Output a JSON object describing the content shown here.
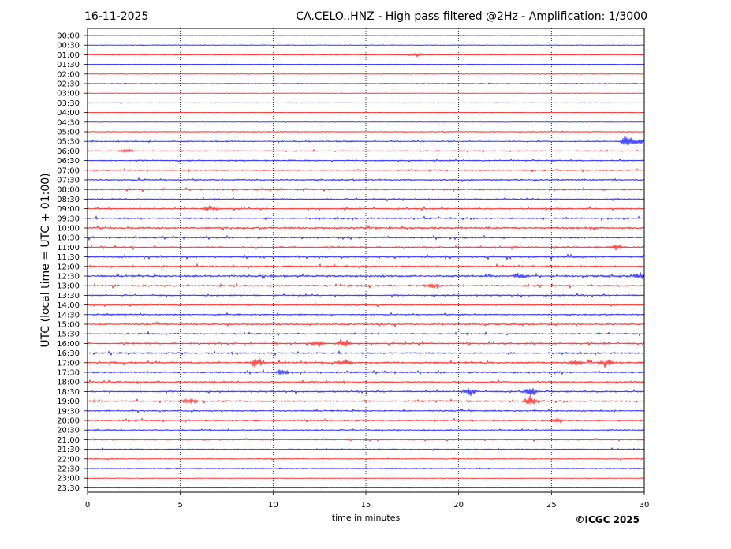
{
  "header": {
    "date": "16-11-2025",
    "title": "CA.CELO..HNZ - High pass filtered @2Hz - Amplification: 1/3000"
  },
  "footer": {
    "copyright": "©ICGC 2025"
  },
  "chart_data": {
    "type": "line",
    "title": "CA.CELO..HNZ - High pass filtered @2Hz - Amplification: 1/3000",
    "xlabel": "time in minutes",
    "ylabel": "UTC (local time = UTC + 01:00)",
    "xlim": [
      0,
      30
    ],
    "xticks": [
      0,
      5,
      10,
      15,
      20,
      25,
      30
    ],
    "vertical_gridlines": [
      5,
      10,
      15,
      20,
      25
    ],
    "grid_style": "dotted",
    "row_labels": [
      "00:00",
      "00:30",
      "01:00",
      "01:30",
      "02:00",
      "02:30",
      "03:00",
      "03:30",
      "04:00",
      "04:30",
      "05:00",
      "05:30",
      "06:00",
      "06:30",
      "07:00",
      "07:30",
      "08:00",
      "08:30",
      "09:00",
      "09:30",
      "10:00",
      "10:30",
      "11:00",
      "11:30",
      "12:00",
      "12:30",
      "13:00",
      "13:30",
      "14:00",
      "14:30",
      "15:00",
      "15:30",
      "16:00",
      "16:30",
      "17:00",
      "17:30",
      "18:00",
      "18:30",
      "19:00",
      "19:30",
      "20:00",
      "20:30",
      "21:00",
      "21:30",
      "22:00",
      "22:30",
      "23:00",
      "23:30"
    ],
    "colors": [
      "#ff0000",
      "#0000ff"
    ],
    "color_pattern": "alternating: 00:00 red, 00:30 blue, ...",
    "row_activity": [
      0.05,
      0.15,
      0.2,
      0.1,
      0.15,
      0.2,
      0.05,
      0.15,
      0.05,
      0.05,
      0.2,
      0.45,
      0.4,
      0.5,
      0.5,
      0.55,
      0.6,
      0.55,
      0.6,
      0.65,
      0.8,
      0.7,
      0.75,
      0.75,
      0.7,
      0.8,
      0.8,
      0.6,
      0.55,
      0.55,
      0.6,
      0.6,
      0.75,
      0.65,
      0.8,
      0.7,
      0.65,
      0.6,
      0.65,
      0.55,
      0.55,
      0.5,
      0.5,
      0.4,
      0.3,
      0.3,
      0.15,
      0.05
    ],
    "events": [
      {
        "row": "01:00",
        "minute": 17.8,
        "amplitude": 0.45
      },
      {
        "row": "05:30",
        "minute": 29.1,
        "amplitude": 1.6
      },
      {
        "row": "05:30",
        "minute": 29.8,
        "amplitude": 1.0
      },
      {
        "row": "06:00",
        "minute": 2.1,
        "amplitude": 0.5
      },
      {
        "row": "09:00",
        "minute": 6.6,
        "amplitude": 0.7
      },
      {
        "row": "11:00",
        "minute": 28.5,
        "amplitude": 0.7
      },
      {
        "row": "12:30",
        "minute": 23.3,
        "amplitude": 0.8
      },
      {
        "row": "12:30",
        "minute": 29.8,
        "amplitude": 1.1
      },
      {
        "row": "13:00",
        "minute": 18.6,
        "amplitude": 0.6
      },
      {
        "row": "16:00",
        "minute": 12.4,
        "amplitude": 0.9
      },
      {
        "row": "16:00",
        "minute": 13.8,
        "amplitude": 1.0
      },
      {
        "row": "17:00",
        "minute": 9.2,
        "amplitude": 1.2
      },
      {
        "row": "17:00",
        "minute": 13.9,
        "amplitude": 0.9
      },
      {
        "row": "17:00",
        "minute": 26.3,
        "amplitude": 0.8
      },
      {
        "row": "17:00",
        "minute": 28.0,
        "amplitude": 1.1
      },
      {
        "row": "17:30",
        "minute": 10.5,
        "amplitude": 1.0
      },
      {
        "row": "18:30",
        "minute": 20.6,
        "amplitude": 0.9
      },
      {
        "row": "18:30",
        "minute": 23.9,
        "amplitude": 1.3
      },
      {
        "row": "19:00",
        "minute": 5.5,
        "amplitude": 0.8
      },
      {
        "row": "19:00",
        "minute": 23.9,
        "amplitude": 1.4
      },
      {
        "row": "20:00",
        "minute": 25.3,
        "amplitude": 0.6
      }
    ]
  }
}
